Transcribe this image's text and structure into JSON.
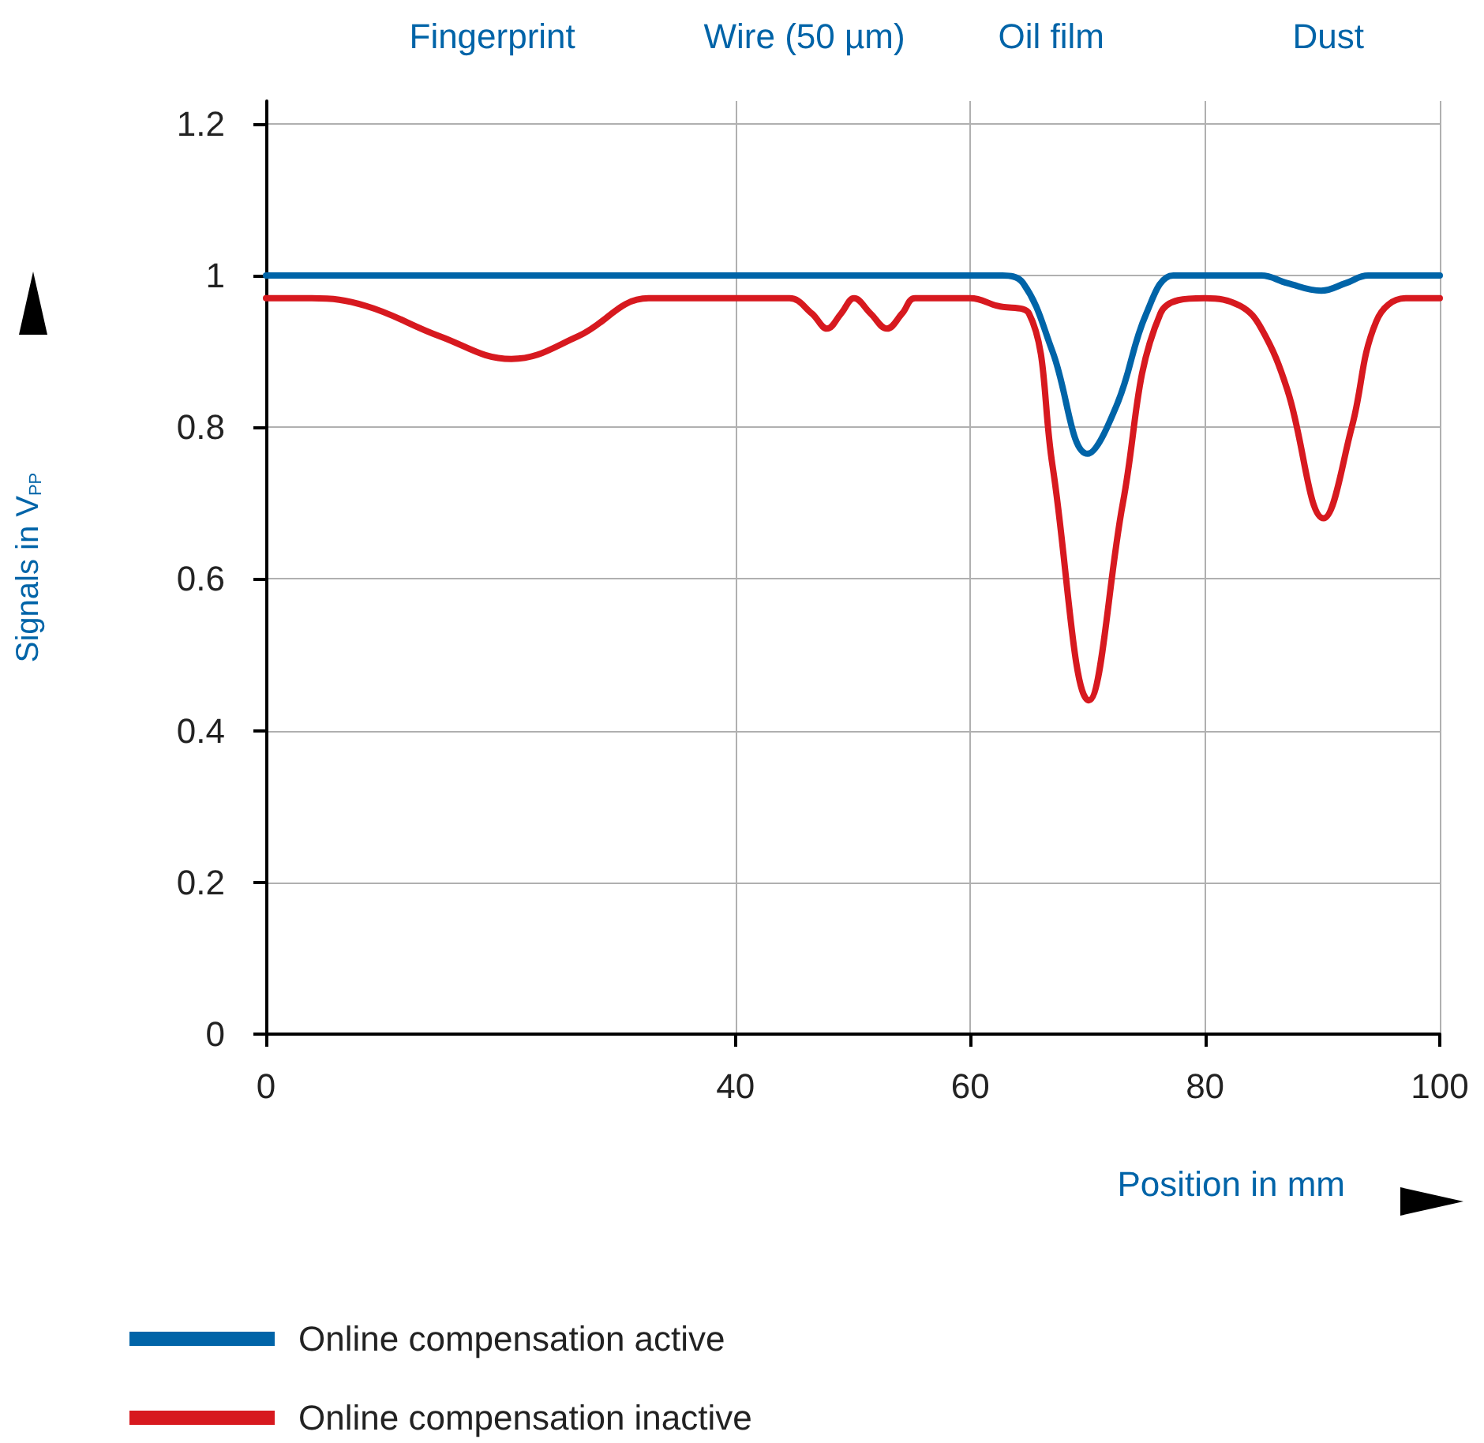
{
  "chart_data": {
    "type": "line",
    "xlabel": "Position in mm",
    "ylabel": "Signals in V$_{PP}$",
    "annotations": [
      "Fingerprint",
      "Wire (50 µm)",
      "Oil film",
      "Dust"
    ],
    "xlim": [
      0,
      100
    ],
    "xticks": [
      0,
      40,
      60,
      80,
      100
    ],
    "ylim": [
      0,
      1.23
    ],
    "yticks": [
      0,
      0.2,
      0.4,
      0.6,
      0.8,
      1.0,
      1.2
    ],
    "grid": true,
    "legend": "bottom left",
    "marker": "none",
    "line_style": "solid",
    "series": [
      {
        "name": "Online compensation active",
        "color": "#0064a8",
        "x": [
          0,
          40,
          60,
          62.5,
          64.5,
          67,
          70,
          72.5,
          75,
          77.3,
          80,
          84.8,
          87,
          89.9,
          92,
          93.9,
          100
        ],
        "values": [
          1.0,
          1.0,
          1.0,
          1.0,
          0.99,
          0.9,
          0.765,
          0.83,
          0.95,
          1.0,
          1.0,
          1.0,
          0.99,
          0.98,
          0.99,
          1.0,
          1.0
        ]
      },
      {
        "name": "Online compensation inactive",
        "color": "#d7191f",
        "x": [
          0,
          3.9,
          8.5,
          14.8,
          20.9,
          26.6,
          32.6,
          40,
          44.6,
          46.5,
          47.8,
          49,
          50.1,
          51.5,
          52.9,
          54.2,
          55.3,
          60,
          62.3,
          65,
          67,
          70.1,
          73,
          76.2,
          80,
          83,
          84.8,
          87,
          90.1,
          92.5,
          94.6,
          97.1,
          100
        ],
        "values": [
          0.97,
          0.97,
          0.96,
          0.92,
          0.89,
          0.92,
          0.97,
          0.97,
          0.97,
          0.95,
          0.93,
          0.95,
          0.97,
          0.95,
          0.93,
          0.95,
          0.97,
          0.97,
          0.96,
          0.95,
          0.75,
          0.44,
          0.7,
          0.95,
          0.97,
          0.96,
          0.93,
          0.85,
          0.68,
          0.8,
          0.94,
          0.97,
          0.97
        ]
      }
    ]
  }
}
